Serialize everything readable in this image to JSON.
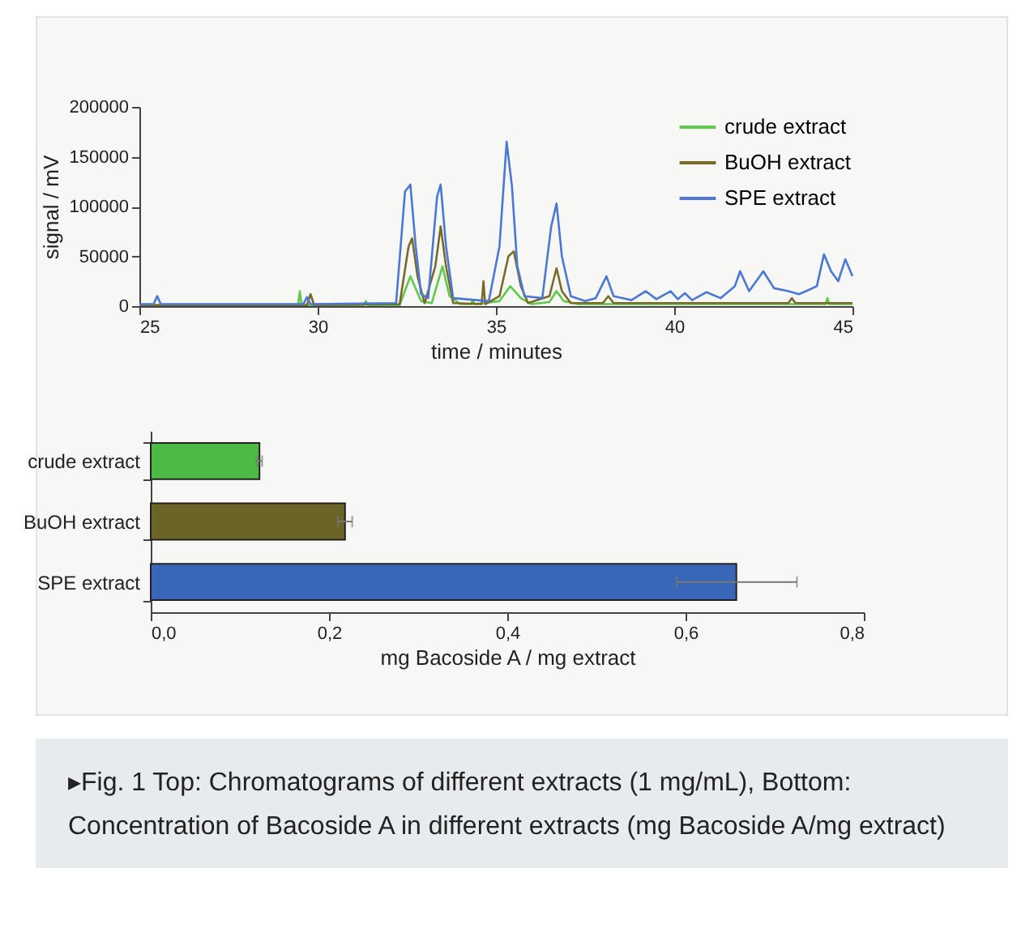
{
  "chart_data": [
    {
      "type": "line",
      "xlabel": "time / minutes",
      "ylabel": "signal / mV",
      "xlim": [
        25,
        45
      ],
      "xticks": [
        25,
        30,
        35,
        40,
        45
      ],
      "ylim": [
        0,
        200000
      ],
      "yticks": [
        0,
        50000,
        100000,
        150000,
        200000
      ],
      "legend": "top right",
      "line_style": "solid",
      "series": [
        {
          "name": "crude extract",
          "color": "#5ec94a",
          "x": [
            25,
            29.45,
            29.5,
            29.55,
            31.3,
            31.35,
            31.4,
            32.3,
            32.6,
            32.9,
            33.2,
            33.5,
            33.7,
            34.0,
            34.3,
            34.35,
            34.4,
            35.1,
            35.4,
            35.7,
            36.0,
            36.5,
            36.7,
            36.9,
            37.3,
            44.25,
            44.3,
            44.35,
            45
          ],
          "values": [
            1000,
            1000,
            15000,
            1000,
            1000,
            5000,
            1000,
            1000,
            30000,
            5000,
            3000,
            40000,
            10000,
            2000,
            2000,
            6000,
            2000,
            5000,
            20000,
            8000,
            2000,
            4000,
            15000,
            5000,
            2000,
            2000,
            8000,
            2000,
            2000
          ]
        },
        {
          "name": "BuOH extract",
          "color": "#7a6a2a",
          "x": [
            25,
            29.7,
            29.8,
            29.9,
            32.3,
            32.55,
            32.65,
            32.8,
            33.0,
            33.3,
            33.45,
            33.6,
            33.8,
            34.6,
            34.65,
            34.7,
            35.1,
            35.35,
            35.5,
            35.7,
            35.9,
            36.5,
            36.7,
            36.85,
            37.1,
            38.0,
            38.15,
            38.3,
            43.2,
            43.3,
            43.4,
            45
          ],
          "values": [
            1000,
            1000,
            12000,
            1000,
            2000,
            60000,
            68000,
            30000,
            3000,
            40000,
            80000,
            40000,
            3000,
            2000,
            25000,
            2000,
            10000,
            50000,
            55000,
            20000,
            3000,
            10000,
            38000,
            15000,
            3000,
            3000,
            10000,
            3000,
            3000,
            8000,
            3000,
            3000
          ]
        },
        {
          "name": "SPE extract",
          "color": "#4a78d4",
          "x": [
            25,
            25.4,
            25.5,
            25.6,
            29.6,
            29.7,
            29.8,
            32.2,
            32.45,
            32.6,
            32.75,
            32.9,
            33.1,
            33.35,
            33.45,
            33.6,
            33.8,
            34.8,
            35.1,
            35.3,
            35.45,
            35.6,
            35.8,
            36.3,
            36.55,
            36.7,
            36.85,
            37.1,
            37.5,
            37.8,
            38.1,
            38.3,
            38.8,
            39.2,
            39.5,
            39.9,
            40.1,
            40.3,
            40.5,
            40.9,
            41.3,
            41.7,
            41.85,
            42.1,
            42.5,
            42.8,
            43.2,
            43.5,
            43.7,
            44.0,
            44.2,
            44.4,
            44.6,
            44.8,
            45
          ],
          "values": [
            2000,
            2000,
            10000,
            2000,
            2000,
            9000,
            2000,
            3000,
            115000,
            122000,
            60000,
            12000,
            8000,
            110000,
            122000,
            60000,
            8000,
            5000,
            60000,
            165000,
            120000,
            40000,
            10000,
            8000,
            80000,
            103000,
            50000,
            10000,
            5000,
            8000,
            30000,
            10000,
            6000,
            15000,
            7000,
            15000,
            7000,
            13000,
            6000,
            14000,
            8000,
            20000,
            35000,
            15000,
            35000,
            18000,
            15000,
            12000,
            15000,
            20000,
            52000,
            35000,
            25000,
            47000,
            30000
          ]
        }
      ]
    },
    {
      "type": "bar",
      "orientation": "horizontal",
      "xlabel": "mg Bacoside A / mg extract",
      "categories": [
        "crude extract",
        "BuOH extract",
        "SPE extract"
      ],
      "values": [
        0.122,
        0.218,
        0.657
      ],
      "colors": [
        "#4cba45",
        "#6b6428",
        "#3a66b8"
      ],
      "errors": [
        0.003,
        0.008,
        [
          0.59,
          0.725
        ]
      ],
      "xlim": [
        0,
        0.8
      ],
      "xticks": [
        {
          "value": 0,
          "label": "0,0"
        },
        {
          "value": 0.2,
          "label": "0,2"
        },
        {
          "value": 0.4,
          "label": "0,4"
        },
        {
          "value": 0.6,
          "label": "0,6"
        },
        {
          "value": 0.8,
          "label": "0,8"
        }
      ],
      "annotations": [
        "▸Fig. 1 Top: Chromatograms of different extracts (1 mg/mL), Bottom: Concentration of Bacoside A in different extracts (mg Bacoside A/mg extract)"
      ]
    }
  ]
}
